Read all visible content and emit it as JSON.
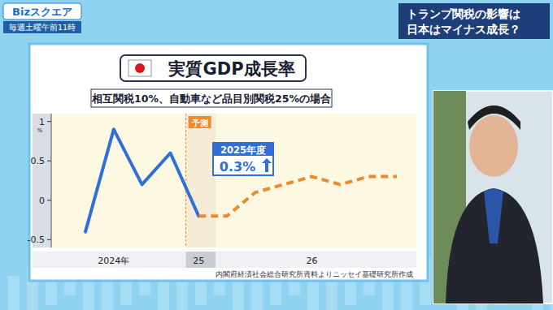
{
  "header": {
    "logo": "Bizスクエア",
    "schedule": "毎週土曜午前11時",
    "headline": [
      "トランプ関税の影響は",
      "日本はマイナス成長？"
    ]
  },
  "chart_data": {
    "type": "line",
    "title": "実質GDP成長率",
    "subtitle": "相互関税10%、自動車など品目別関税25%の場合",
    "y_label": "%",
    "categories": [
      null,
      "2024年",
      null,
      null,
      "25",
      null,
      null,
      null,
      "26",
      null,
      null,
      null
    ],
    "series": [
      {
        "color": "#2f6fd8",
        "line_style": "solid",
        "values": [
          -0.4,
          0.9,
          0.2,
          0.6,
          -0.2,
          null,
          null,
          null,
          null,
          null,
          null,
          null
        ]
      },
      {
        "color": "#ee8a2a",
        "line_style": "dashed",
        "values": [
          null,
          null,
          null,
          null,
          -0.2,
          -0.2,
          0.1,
          0.2,
          0.3,
          0.2,
          0.3,
          0.3
        ]
      }
    ],
    "ylim": [
      -0.6,
      1.1
    ],
    "yticks": [
      -0.5,
      0,
      0.5,
      1
    ],
    "grid": false,
    "annotations": [
      "予測",
      "2025年度",
      "0.3%"
    ],
    "source": "内閣府経済社会総合研究所資料よりニッセイ基礎研究所作成"
  }
}
